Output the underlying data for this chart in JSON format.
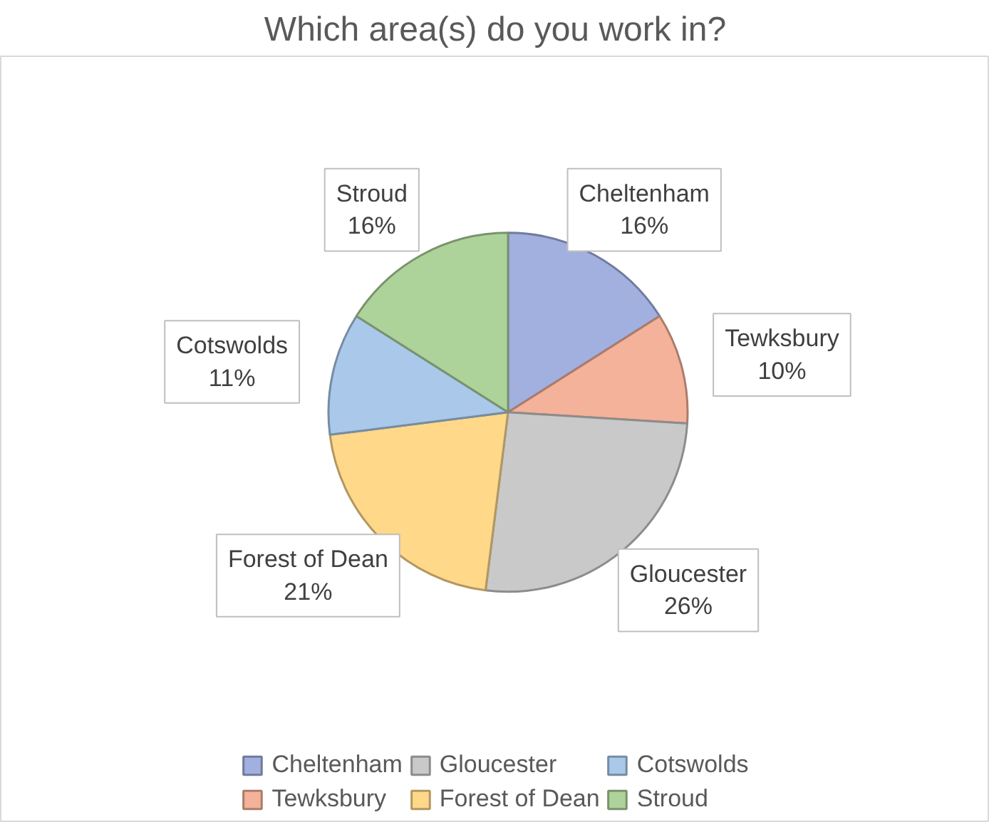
{
  "chart_data": {
    "type": "pie",
    "title": "Which area(s) do you work in?",
    "categories": [
      "Cheltenham",
      "Tewksbury",
      "Gloucester",
      "Forest of Dean",
      "Cotswolds",
      "Stroud"
    ],
    "values": [
      16,
      10,
      26,
      21,
      11,
      16
    ],
    "value_labels": [
      "16%",
      "10%",
      "26%",
      "21%",
      "11%",
      "16%"
    ],
    "colors": [
      "#a2b0e0",
      "#f4b29a",
      "#c9c9c9",
      "#ffd88a",
      "#a9c8ea",
      "#add39b"
    ],
    "legend": "bottom"
  }
}
